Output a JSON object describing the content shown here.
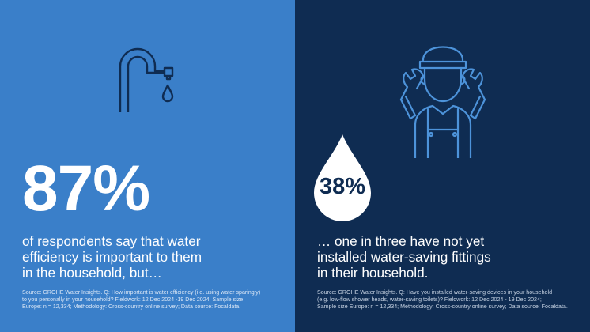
{
  "left_panel": {
    "stat": "87%",
    "statement_lines": [
      "of respondents say that water",
      "efficiency is important to them",
      "in the household, but…"
    ],
    "source_lines": [
      "Source: GROHE Water Insights. Q: How important is water efficiency (i.e. using water sparingly)",
      "to you personally in your household? Fieldwork: 12 Dec 2024 -19 Dec 2024; Sample size",
      "Europe: n = 12,334; Methodology: Cross-country online survey; Data source: Focaldata."
    ],
    "icon": "water-tap-icon",
    "background_color": "#3a7fc9"
  },
  "right_panel": {
    "stat": "38%",
    "statement_lines": [
      "… one in three have not yet",
      "installed water-saving fittings",
      "in their household."
    ],
    "source_lines": [
      "Source: GROHE Water Insights. Q: Have you installed water-saving devices in your household",
      "(e.g. low-flow shower heads, water-saving toilets)? Fieldwork: 12 Dec 2024 - 19 Dec 2024;",
      "Sample size Europe: n = 12,334; Methodology: Cross-country online survey; Data source: Focaldata."
    ],
    "icon": "plumber-with-wrenches-icon",
    "badge_icon": "water-drop-icon",
    "background_color": "#0f2c52"
  }
}
